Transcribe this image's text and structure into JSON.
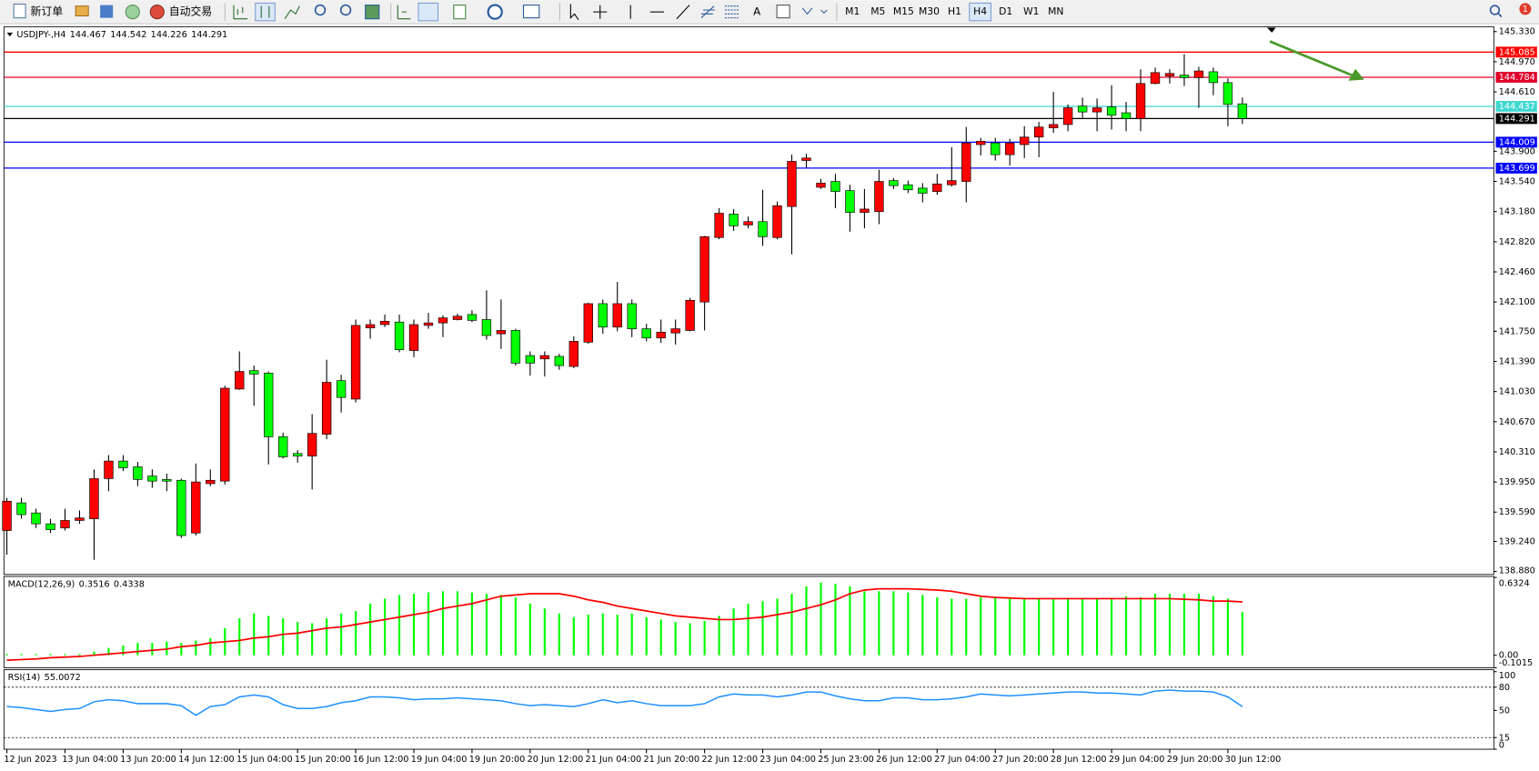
{
  "toolbar": {
    "new_order": "新订单",
    "auto_trading": "自动交易",
    "text_tool": "A",
    "timeframes": [
      "M1",
      "M5",
      "M15",
      "M30",
      "H1",
      "H4",
      "D1",
      "W1",
      "MN"
    ],
    "active_timeframe": "H4",
    "notification_count": 1
  },
  "chart_data": [
    {
      "type": "candlestick",
      "symbol": "USDJPY-,H4",
      "up_color": "#ff0000",
      "down_color": "#00ff00",
      "x": [
        "12 Jun 2023",
        null,
        null,
        null,
        "13 Jun 04:00",
        null,
        null,
        null,
        "13 Jun 20:00",
        null,
        null,
        null,
        "14 Jun 12:00",
        null,
        null,
        null,
        "15 Jun 04:00",
        null,
        null,
        null,
        "15 Jun 20:00",
        null,
        null,
        null,
        "16 Jun 12:00",
        null,
        null,
        null,
        "19 Jun 04:00",
        null,
        null,
        null,
        "19 Jun 20:00",
        null,
        null,
        null,
        "20 Jun 12:00",
        null,
        null,
        null,
        "21 Jun 04:00",
        null,
        null,
        null,
        "21 Jun 20:00",
        null,
        null,
        null,
        "22 Jun 12:00",
        null,
        null,
        null,
        "23 Jun 04:00",
        null,
        null,
        null,
        "25 Jun 23:00",
        null,
        null,
        null,
        "26 Jun 12:00",
        null,
        null,
        null,
        "27 Jun 04:00",
        null,
        null,
        null,
        "27 Jun 20:00",
        null,
        null,
        null,
        "28 Jun 12:00",
        null,
        null,
        null,
        "29 Jun 04:00",
        null,
        null,
        null,
        "29 Jun 20:00",
        null,
        null,
        null,
        "30 Jun 12:00",
        null
      ],
      "open": [
        139.37,
        139.7,
        139.58,
        139.45,
        139.4,
        139.49,
        139.51,
        139.99,
        140.2,
        140.13,
        140.02,
        139.98,
        139.97,
        139.34,
        139.93,
        139.96,
        141.06,
        141.28,
        141.25,
        140.49,
        140.29,
        140.26,
        140.52,
        141.16,
        140.94,
        141.79,
        141.83,
        141.86,
        141.52,
        141.82,
        141.85,
        141.89,
        141.95,
        141.89,
        141.72,
        141.76,
        141.46,
        141.42,
        141.45,
        141.33,
        141.62,
        142.08,
        141.8,
        142.08,
        141.78,
        141.67,
        141.73,
        141.76,
        142.1,
        142.87,
        143.15,
        143.02,
        143.06,
        142.87,
        143.24,
        143.79,
        143.47,
        143.54,
        143.43,
        143.17,
        143.18,
        143.55,
        143.5,
        143.46,
        143.42,
        143.5,
        143.54,
        143.98,
        144.0,
        143.86,
        143.98,
        144.07,
        144.18,
        144.22,
        144.44,
        144.37,
        144.43,
        144.36,
        144.29,
        144.71,
        144.8,
        144.81,
        144.78,
        144.85,
        144.72,
        144.467
      ],
      "high": [
        139.76,
        139.76,
        139.63,
        139.51,
        139.63,
        139.61,
        140.1,
        140.27,
        140.27,
        140.19,
        140.1,
        140.05,
        139.99,
        140.17,
        140.1,
        141.1,
        141.51,
        141.34,
        141.27,
        140.54,
        140.33,
        140.76,
        141.41,
        141.23,
        141.89,
        141.89,
        141.95,
        141.95,
        141.89,
        141.97,
        141.94,
        141.96,
        142.0,
        142.24,
        142.13,
        141.78,
        141.51,
        141.51,
        141.48,
        141.69,
        142.09,
        142.13,
        142.34,
        142.13,
        141.84,
        141.89,
        141.89,
        142.15,
        142.89,
        143.22,
        143.21,
        143.12,
        143.44,
        143.3,
        143.86,
        143.87,
        143.57,
        143.63,
        143.5,
        143.45,
        143.68,
        143.58,
        143.55,
        143.52,
        143.63,
        143.95,
        144.19,
        144.06,
        144.06,
        144.05,
        144.2,
        144.25,
        144.61,
        144.46,
        144.54,
        144.53,
        144.69,
        144.49,
        144.88,
        144.9,
        144.88,
        145.06,
        144.91,
        144.9,
        144.77,
        144.542
      ],
      "low": [
        139.08,
        139.51,
        139.4,
        139.34,
        139.37,
        139.45,
        139.02,
        139.84,
        140.08,
        139.9,
        139.88,
        139.84,
        139.28,
        139.31,
        139.9,
        139.92,
        141.05,
        140.86,
        140.16,
        140.23,
        140.18,
        139.86,
        140.46,
        140.78,
        140.9,
        141.66,
        141.8,
        141.5,
        141.44,
        141.78,
        141.68,
        141.88,
        141.86,
        141.65,
        141.54,
        141.34,
        141.22,
        141.21,
        141.29,
        141.31,
        141.6,
        141.72,
        141.75,
        141.68,
        141.63,
        141.61,
        141.59,
        141.75,
        141.76,
        142.85,
        142.95,
        142.98,
        142.77,
        142.85,
        142.67,
        143.7,
        143.45,
        143.22,
        142.94,
        142.98,
        143.03,
        143.45,
        143.4,
        143.29,
        143.38,
        143.48,
        143.29,
        143.85,
        143.79,
        143.73,
        143.82,
        143.83,
        144.12,
        144.14,
        144.3,
        144.14,
        144.16,
        144.14,
        144.14,
        144.7,
        144.71,
        144.68,
        144.42,
        144.57,
        144.2,
        144.226
      ],
      "close": [
        139.72,
        139.56,
        139.45,
        139.38,
        139.49,
        139.52,
        139.99,
        140.2,
        140.12,
        139.98,
        139.96,
        139.96,
        139.31,
        139.95,
        139.97,
        141.07,
        141.27,
        141.24,
        140.49,
        140.25,
        140.26,
        140.53,
        141.14,
        140.96,
        141.82,
        141.83,
        141.87,
        141.53,
        141.83,
        141.85,
        141.91,
        141.93,
        141.88,
        141.7,
        141.76,
        141.37,
        141.37,
        141.46,
        141.34,
        141.63,
        142.08,
        141.8,
        142.08,
        141.78,
        141.67,
        141.74,
        141.78,
        142.12,
        142.88,
        143.16,
        143.01,
        143.06,
        142.88,
        143.25,
        143.78,
        143.82,
        143.52,
        143.42,
        143.17,
        143.21,
        143.54,
        143.49,
        143.44,
        143.4,
        143.51,
        143.55,
        144.0,
        144.02,
        143.86,
        144.0,
        144.07,
        144.19,
        144.22,
        144.42,
        144.37,
        144.42,
        144.33,
        144.29,
        144.71,
        144.84,
        144.83,
        144.78,
        144.86,
        144.72,
        144.46,
        144.291
      ],
      "ylim": [
        138.88,
        145.33
      ],
      "yticks": [
        {
          "value": 145.33,
          "label": "145.330"
        },
        {
          "value": 144.97,
          "label": "144.970"
        },
        {
          "value": 144.61,
          "label": "144.610"
        },
        {
          "value": 143.9,
          "label": "143.900"
        },
        {
          "value": 143.54,
          "label": "143.540"
        },
        {
          "value": 143.18,
          "label": "143.180"
        },
        {
          "value": 142.82,
          "label": "142.820"
        },
        {
          "value": 142.46,
          "label": "142.460"
        },
        {
          "value": 142.1,
          "label": "142.100"
        },
        {
          "value": 141.75,
          "label": "141.750"
        },
        {
          "value": 141.39,
          "label": "141.390"
        },
        {
          "value": 141.03,
          "label": "141.030"
        },
        {
          "value": 140.67,
          "label": "140.670"
        },
        {
          "value": 140.31,
          "label": "140.310"
        },
        {
          "value": 139.95,
          "label": "139.950"
        },
        {
          "value": 139.59,
          "label": "139.590"
        },
        {
          "value": 139.24,
          "label": "139.240"
        },
        {
          "value": 138.88,
          "label": "138.880"
        }
      ],
      "hlines": [
        {
          "value": 145.085,
          "color": "#ff0000"
        },
        {
          "value": 144.784,
          "color": "#e0002a"
        },
        {
          "value": 144.437,
          "color": "#40d8d0"
        },
        {
          "value": 144.291,
          "color": "#000000"
        },
        {
          "value": 144.009,
          "color": "#0000ff"
        },
        {
          "value": 143.699,
          "color": "#0000ff"
        }
      ]
    },
    {
      "type": "macd",
      "title": "MACD(12,26,9)",
      "histogram_color": "#00ff00",
      "signal_color": "#ff0000",
      "histogram": [
        0.01,
        0.01,
        0.01,
        0.01,
        0.01,
        0.01,
        0.03,
        0.06,
        0.08,
        0.1,
        0.1,
        0.11,
        0.1,
        0.12,
        0.14,
        0.22,
        0.3,
        0.34,
        0.32,
        0.3,
        0.27,
        0.26,
        0.3,
        0.34,
        0.36,
        0.42,
        0.46,
        0.49,
        0.5,
        0.51,
        0.52,
        0.52,
        0.51,
        0.5,
        0.49,
        0.47,
        0.42,
        0.38,
        0.34,
        0.31,
        0.33,
        0.34,
        0.33,
        0.34,
        0.31,
        0.29,
        0.27,
        0.26,
        0.28,
        0.32,
        0.38,
        0.42,
        0.44,
        0.46,
        0.5,
        0.56,
        0.59,
        0.58,
        0.56,
        0.52,
        0.52,
        0.52,
        0.51,
        0.49,
        0.47,
        0.46,
        0.46,
        0.47,
        0.47,
        0.47,
        0.46,
        0.46,
        0.46,
        0.46,
        0.46,
        0.46,
        0.46,
        0.48,
        0.47,
        0.5,
        0.5,
        0.5,
        0.5,
        0.48,
        0.46,
        0.3516
      ],
      "signal": [
        -0.04,
        -0.035,
        -0.03,
        -0.02,
        -0.015,
        -0.01,
        0,
        0.01,
        0.02,
        0.03,
        0.04,
        0.05,
        0.07,
        0.08,
        0.1,
        0.11,
        0.12,
        0.14,
        0.15,
        0.17,
        0.18,
        0.2,
        0.22,
        0.23,
        0.25,
        0.27,
        0.29,
        0.31,
        0.33,
        0.35,
        0.38,
        0.4,
        0.42,
        0.45,
        0.48,
        0.49,
        0.5,
        0.5,
        0.5,
        0.48,
        0.45,
        0.43,
        0.4,
        0.38,
        0.36,
        0.34,
        0.32,
        0.31,
        0.3,
        0.29,
        0.29,
        0.3,
        0.31,
        0.33,
        0.35,
        0.38,
        0.41,
        0.45,
        0.5,
        0.53,
        0.54,
        0.54,
        0.54,
        0.535,
        0.53,
        0.52,
        0.5,
        0.48,
        0.47,
        0.465,
        0.46,
        0.46,
        0.46,
        0.46,
        0.46,
        0.46,
        0.46,
        0.46,
        0.46,
        0.46,
        0.46,
        0.455,
        0.45,
        0.44,
        0.44,
        0.4338
      ],
      "ylim": [
        -0.1015,
        0.6324
      ],
      "yticks": [
        0.6324,
        {
          "value": 0,
          "label": "0.00"
        },
        -0.1015
      ]
    },
    {
      "type": "rsi",
      "title": "RSI(14)",
      "color": "#1e90ff",
      "values": [
        55,
        53.75,
        51.25,
        48.75,
        51.25,
        52.5,
        61.25,
        63.75,
        62.5,
        58.75,
        58.75,
        58.75,
        56.25,
        43.75,
        55,
        57.5,
        67.5,
        70,
        67.5,
        57.5,
        52.5,
        52.5,
        55,
        60,
        62.5,
        67.5,
        67.5,
        66.25,
        63.75,
        65,
        65,
        66.25,
        65,
        63.75,
        62.5,
        58.75,
        56.25,
        57.5,
        56.25,
        55,
        58.75,
        63.75,
        60,
        62.5,
        58.75,
        56.25,
        56.25,
        56.25,
        58.75,
        67.5,
        71.25,
        70,
        70,
        67.5,
        70,
        73.75,
        73.75,
        68.75,
        65,
        62.5,
        62.5,
        66.25,
        66.25,
        63.75,
        63.75,
        65,
        67.5,
        71.25,
        70,
        68.75,
        70,
        71.25,
        72.5,
        73.75,
        73.75,
        72.5,
        72.5,
        71.25,
        70,
        75,
        76.25,
        75,
        75,
        73.75,
        67.5,
        55.0072
      ],
      "ylim": [
        0,
        100
      ],
      "yticks": [
        100,
        80,
        50,
        15,
        0
      ],
      "levels": [
        80,
        15
      ]
    }
  ]
}
